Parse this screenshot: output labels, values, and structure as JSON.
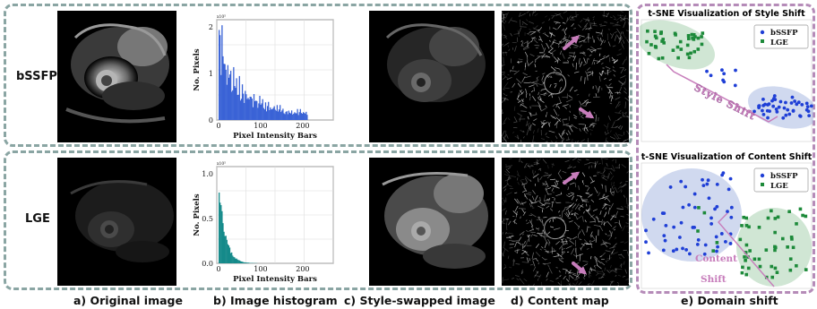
{
  "rows": [
    {
      "label": "bSSFP",
      "hist_color": "#3a63d6",
      "hist_max_label": "2",
      "hist_exp": "x10⁵"
    },
    {
      "label": "LGE",
      "hist_color": "#158a8a",
      "hist_max_label": "1.0",
      "hist_exp": "x10⁵"
    }
  ],
  "histogram": {
    "ylabel": "No. Pixels",
    "xlabel": "Pixel Intensity Bars",
    "xticks": [
      "0",
      "100",
      "200"
    ],
    "bssfp_yticks": [
      "0",
      "1",
      "2"
    ],
    "lge_yticks": [
      "0.0",
      "0.5",
      "1.0"
    ]
  },
  "captions": {
    "a": "a) Original image",
    "b": "b) Image histogram",
    "c": "c) Style-swapped image",
    "d": "d) Content map",
    "e": "e) Domain shift"
  },
  "tsne_style": {
    "title": "t-SNE Visualization of Style Shift",
    "legend": [
      "bSSFP",
      "LGE"
    ],
    "annotation": "Style Shift"
  },
  "tsne_content": {
    "title": "t-SNE Visualization of Content Shift",
    "legend": [
      "bSSFP",
      "LGE"
    ],
    "annotation_line1": "Content",
    "annotation_line2": "Shift"
  },
  "colors": {
    "bssfp": "#1f3fd6",
    "lge": "#1d8a3a",
    "row_border": "#8aa5a3",
    "right_border": "#b58bb8",
    "arrow": "#c77dbb"
  }
}
